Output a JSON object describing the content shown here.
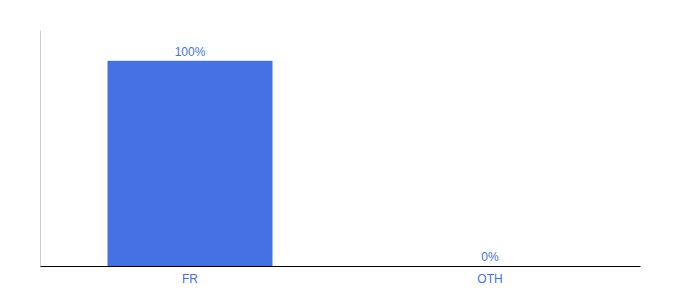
{
  "chart_data": {
    "type": "bar",
    "categories": [
      "FR",
      "OTH"
    ],
    "values": [
      100,
      0
    ],
    "value_labels": [
      "100%",
      "0%"
    ],
    "color": "#4472e4",
    "ylim": [
      0,
      115
    ],
    "data_labels": true,
    "tick_labels": "x"
  }
}
